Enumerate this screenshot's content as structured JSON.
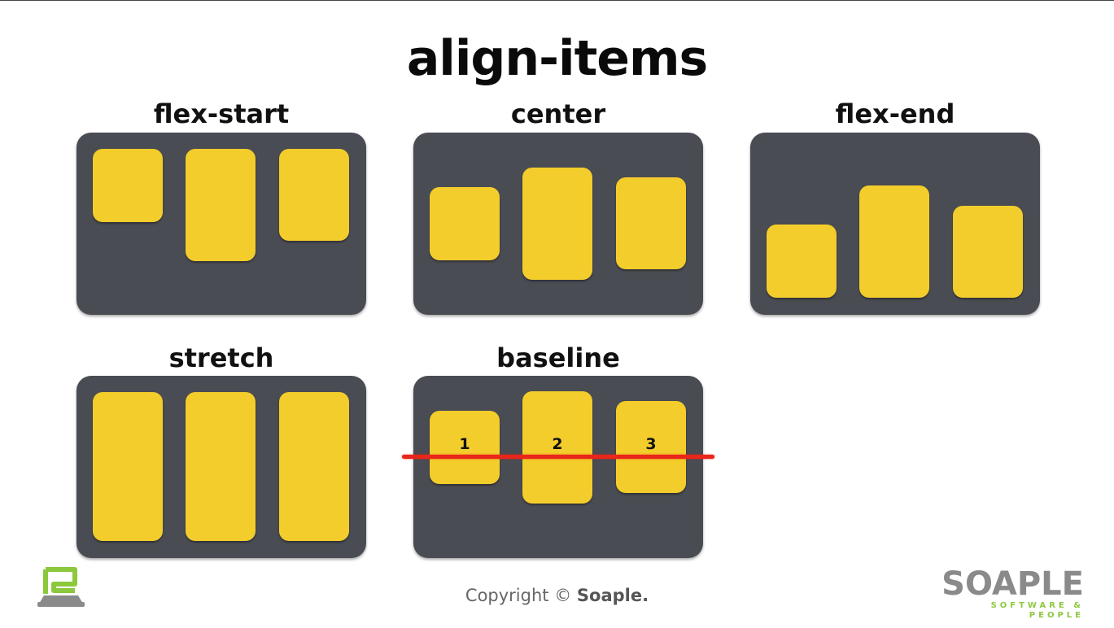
{
  "title": "align-items",
  "panels": [
    {
      "label": "flex-start"
    },
    {
      "label": "center"
    },
    {
      "label": "flex-end"
    },
    {
      "label": "stretch"
    },
    {
      "label": "baseline",
      "numbers": [
        "1",
        "2",
        "3"
      ]
    }
  ],
  "footer": {
    "copyright_prefix": "Copyright ©",
    "copyright_brand": "Soaple."
  },
  "brand": {
    "name": "SOAPLE",
    "tagline": "SOFTWARE & PEOPLE"
  },
  "colors": {
    "panel": "#4a4c53",
    "item": "#f3cd2b",
    "baseline": "#e8261a",
    "brand_green": "#8cc83c"
  },
  "icons": [
    "soaple-logo-icon"
  ]
}
